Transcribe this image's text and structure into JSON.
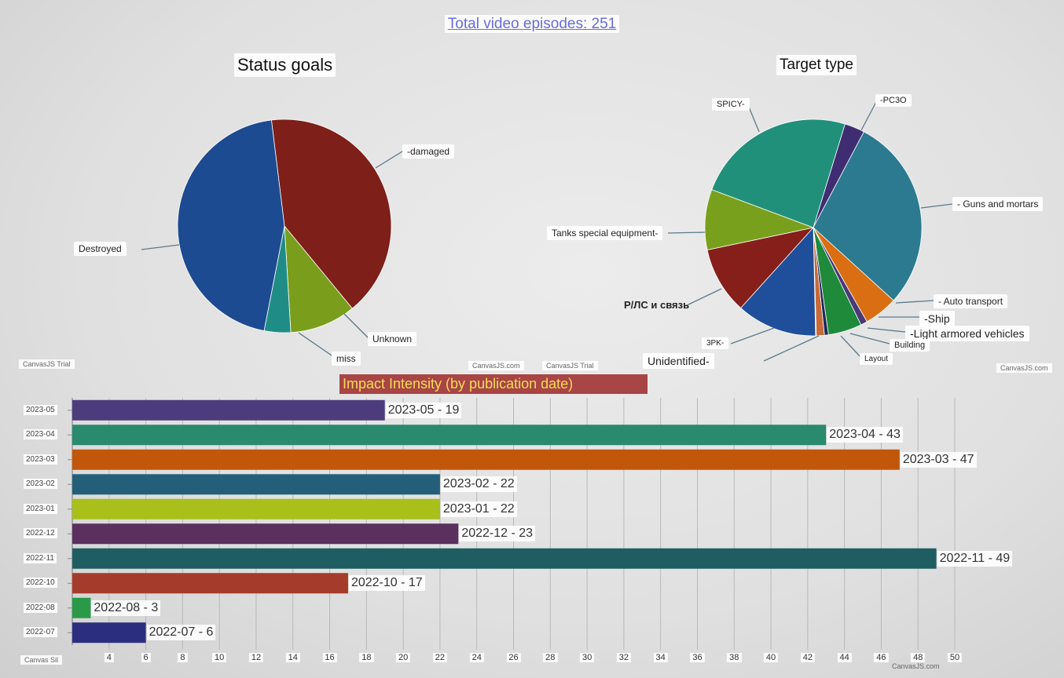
{
  "header": {
    "total_link": "Total video episodes: 251"
  },
  "watermarks": {
    "canvas_trial": "CanvasJS Trial",
    "canvas_com": "CanvasJS.com",
    "canvas_sil": "Canvas Sil"
  },
  "chart_data": [
    {
      "type": "pie",
      "title": "Status goals",
      "slices": [
        {
          "label": "-damaged",
          "value": 41,
          "color": "#7e1f1a"
        },
        {
          "label": "Unknown",
          "value": 10,
          "color": "#7a9e1c"
        },
        {
          "label": "miss",
          "value": 4,
          "color": "#1f8d86"
        },
        {
          "label": "Destroyed",
          "value": 45,
          "color": "#1d4b91"
        }
      ]
    },
    {
      "type": "pie",
      "title": "Target type",
      "slices": [
        {
          "label": "-PC3O",
          "value": 3,
          "color": "#3f2d72"
        },
        {
          "label": "- Guns and mortars",
          "value": 29,
          "color": "#2b7a90"
        },
        {
          "label": "- Auto transport",
          "value": 5,
          "color": "#d96f12"
        },
        {
          "label": "-Ship",
          "value": 1,
          "color": "#4a3978"
        },
        {
          "label": "-Light armored vehicles",
          "value": 5,
          "color": "#1e8a3a"
        },
        {
          "label": "Building",
          "value": 0.6,
          "color": "#1d2b5a"
        },
        {
          "label": "Layout",
          "value": 1.2,
          "color": "#c66a3a"
        },
        {
          "label": "Unidentified-",
          "value": 0.1,
          "color": "#5a5a8a"
        },
        {
          "label": "3PK-",
          "value": 12,
          "color": "#1f4f9a"
        },
        {
          "label": "Р/ЛС и связь",
          "value": 10,
          "color": "#861f1a"
        },
        {
          "label": "Tanks special equipment-",
          "value": 9,
          "color": "#79a01c"
        },
        {
          "label": "SPICY-",
          "value": 24,
          "color": "#21907a"
        }
      ]
    },
    {
      "type": "bar",
      "title": "Impact Intensity (by publication date)",
      "categories": [
        "2023-05",
        "2023-04",
        "2023-03",
        "2023-02",
        "2023-01",
        "2022-12",
        "2022-11",
        "2022-10",
        "2022-08",
        "2022-07"
      ],
      "values": [
        19,
        43,
        47,
        22,
        22,
        23,
        49,
        17,
        3,
        6
      ],
      "labels": [
        "2023-05 - 19",
        "2023-04 - 43",
        "2023-03 - 47",
        "2023-02 - 22",
        "2023-01 - 22",
        "2022-12 - 23",
        "2022-11 - 49",
        "2022-10 - 17",
        "2022-08 - 3",
        "2022-07 - 6"
      ],
      "colors": [
        "#4d3c7d",
        "#2a8a6e",
        "#c2570b",
        "#245f7a",
        "#a9bf1a",
        "#5b2f5e",
        "#1e5e62",
        "#a53b2a",
        "#2a9a48",
        "#2b2e7e"
      ],
      "x_ticks": [
        4,
        6,
        8,
        10,
        12,
        14,
        16,
        18,
        20,
        22,
        24,
        26,
        28,
        30,
        32,
        34,
        36,
        38,
        40,
        42,
        44,
        46,
        48,
        50
      ],
      "xlim": [
        2,
        50
      ],
      "grid": true
    }
  ]
}
